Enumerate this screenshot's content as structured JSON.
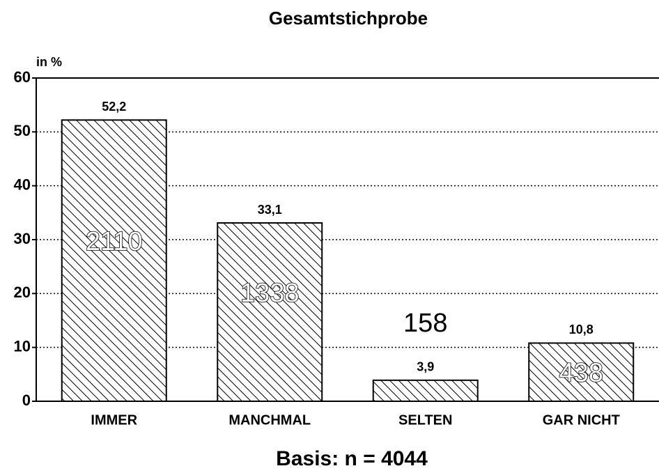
{
  "chart_data": {
    "type": "bar",
    "title": "Gesamtstichprobe",
    "y_label": "in %",
    "categories": [
      "IMMER",
      "MANCHMAL",
      "SELTEN",
      "GAR NICHT"
    ],
    "values": [
      52.2,
      33.1,
      3.9,
      10.8
    ],
    "value_labels": [
      "52,2",
      "33,1",
      "3,9",
      "10,8"
    ],
    "counts": [
      2110,
      1338,
      158,
      438
    ],
    "color": "#000000",
    "ylim": [
      0,
      60
    ],
    "yticks": [
      0,
      10,
      20,
      30,
      40,
      50,
      60
    ],
    "grid": true,
    "footer": "Basis: n = 4044"
  }
}
